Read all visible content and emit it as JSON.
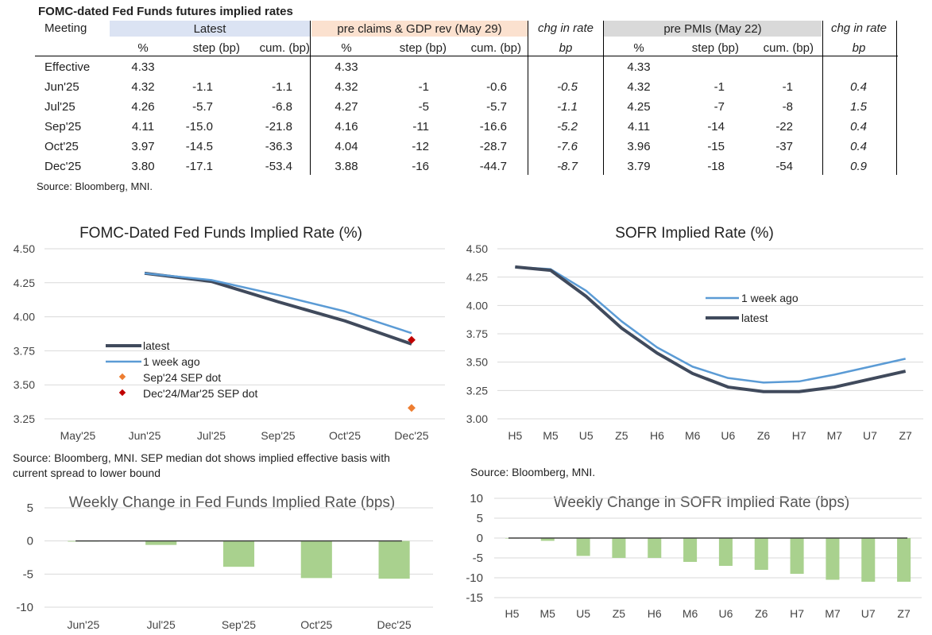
{
  "table": {
    "title": "FOMC-dated Fed Funds futures implied rates",
    "meeting_label": "Meeting",
    "groups": {
      "latest": "Latest",
      "pre_claims": "pre claims & GDP rev (May 29)",
      "chg1": "chg in rate",
      "pre_pmis": "pre PMIs (May 22)",
      "chg2": "chg in rate"
    },
    "subheaders": {
      "pct1": "%",
      "step1": "step (bp)",
      "cum1": "cum. (bp)",
      "pct2": "%",
      "step2": "step (bp)",
      "cum2": "cum. (bp)",
      "bp1": "bp",
      "pct3": "%",
      "step3": "step (bp)",
      "cum3": "cum. (bp)",
      "bp2": "bp"
    },
    "rows": [
      {
        "meeting": "Effective",
        "l_pct": "4.33",
        "l_step": "",
        "l_cum": "",
        "c_pct": "4.33",
        "c_step": "",
        "c_cum": "",
        "chg1": "",
        "p_pct": "4.33",
        "p_step": "",
        "p_cum": "",
        "chg2": ""
      },
      {
        "meeting": "Jun'25",
        "l_pct": "4.32",
        "l_step": "-1.1",
        "l_cum": "-1.1",
        "c_pct": "4.32",
        "c_step": "-1",
        "c_cum": "-0.6",
        "chg1": "-0.5",
        "p_pct": "4.32",
        "p_step": "-1",
        "p_cum": "-1",
        "chg2": "0.4"
      },
      {
        "meeting": "Jul'25",
        "l_pct": "4.26",
        "l_step": "-5.7",
        "l_cum": "-6.8",
        "c_pct": "4.27",
        "c_step": "-5",
        "c_cum": "-5.7",
        "chg1": "-1.1",
        "p_pct": "4.25",
        "p_step": "-7",
        "p_cum": "-8",
        "chg2": "1.5"
      },
      {
        "meeting": "Sep'25",
        "l_pct": "4.11",
        "l_step": "-15.0",
        "l_cum": "-21.8",
        "c_pct": "4.16",
        "c_step": "-11",
        "c_cum": "-16.6",
        "chg1": "-5.2",
        "p_pct": "4.11",
        "p_step": "-14",
        "p_cum": "-22",
        "chg2": "0.4"
      },
      {
        "meeting": "Oct'25",
        "l_pct": "3.97",
        "l_step": "-14.5",
        "l_cum": "-36.3",
        "c_pct": "4.04",
        "c_step": "-12",
        "c_cum": "-28.7",
        "chg1": "-7.6",
        "p_pct": "3.96",
        "p_step": "-15",
        "p_cum": "-37",
        "chg2": "0.4"
      },
      {
        "meeting": "Dec'25",
        "l_pct": "3.80",
        "l_step": "-17.1",
        "l_cum": "-53.4",
        "c_pct": "3.88",
        "c_step": "-16",
        "c_cum": "-44.7",
        "chg1": "-8.7",
        "p_pct": "3.79",
        "p_step": "-18",
        "p_cum": "-54",
        "chg2": "0.9"
      }
    ],
    "source": "Source: Bloomberg, MNI."
  },
  "colors": {
    "latest_band": "#dbe3f3",
    "pre_claims_band": "#fbe1cf",
    "pre_pmis_band": "#d9d9d9",
    "latest_line": "#404a5c",
    "week_ago_line": "#5b9bd5",
    "sep24_dot": "#ed7d31",
    "dec24_dot": "#c00000",
    "bars": "#a9d18e"
  },
  "chart_data": [
    {
      "type": "line",
      "title": "FOMC-Dated Fed Funds Implied Rate (%)",
      "categories": [
        "May'25",
        "Jun'25",
        "Jul'25",
        "Sep'25",
        "Oct'25",
        "Dec'25"
      ],
      "ylim": [
        3.25,
        4.5
      ],
      "yticks": [
        "4.50",
        "4.25",
        "4.00",
        "3.75",
        "3.50",
        "3.25"
      ],
      "series": [
        {
          "name": "latest",
          "values": [
            null,
            4.32,
            4.26,
            4.11,
            3.97,
            3.8
          ]
        },
        {
          "name": "1 week ago",
          "values": [
            null,
            4.32,
            4.27,
            4.16,
            4.04,
            3.88
          ]
        },
        {
          "name": "Sep'24 SEP dot",
          "values": [
            null,
            null,
            null,
            null,
            null,
            3.33
          ]
        },
        {
          "name": "Dec'24/Mar'25 SEP dot",
          "values": [
            null,
            null,
            null,
            null,
            null,
            3.83
          ]
        }
      ],
      "source": "Source: Bloomberg, MNI. SEP median dot shows implied effective basis with current spread to lower bound",
      "source_line1": "Source: Bloomberg, MNI. SEP median dot shows implied effective basis with",
      "source_line2": "current spread to lower bound"
    },
    {
      "type": "line",
      "title": "SOFR Implied Rate (%)",
      "categories": [
        "H5",
        "M5",
        "U5",
        "Z5",
        "H6",
        "M6",
        "U6",
        "Z6",
        "H7",
        "M7",
        "U7",
        "Z7"
      ],
      "ylim": [
        3.0,
        4.5
      ],
      "yticks": [
        "4.50",
        "4.25",
        "4.00",
        "3.75",
        "3.50",
        "3.25",
        "3.00"
      ],
      "series": [
        {
          "name": "1 week ago",
          "values": [
            4.34,
            4.32,
            4.13,
            3.86,
            3.63,
            3.46,
            3.36,
            3.32,
            3.33,
            3.39,
            3.46,
            3.53
          ]
        },
        {
          "name": "latest",
          "values": [
            4.34,
            4.31,
            4.08,
            3.8,
            3.58,
            3.4,
            3.28,
            3.24,
            3.24,
            3.28,
            3.35,
            3.42
          ]
        }
      ],
      "source": "Source: Bloomberg, MNI."
    },
    {
      "type": "bar",
      "title": "Weekly Change in Fed Funds Implied Rate (bps)",
      "categories": [
        "Jun'25",
        "Jul'25",
        "Sep'25",
        "Oct'25",
        "Dec'25"
      ],
      "values": [
        -0.1,
        -0.6,
        -3.9,
        -5.6,
        -5.7
      ],
      "ylim": [
        -10,
        5
      ],
      "yticks": [
        "5",
        "0",
        "-5",
        "-10"
      ]
    },
    {
      "type": "bar",
      "title": "Weekly Change in SOFR Implied Rate (bps)",
      "categories": [
        "H5",
        "M5",
        "U5",
        "Z5",
        "H6",
        "M6",
        "U6",
        "Z6",
        "H7",
        "M7",
        "U7",
        "Z7"
      ],
      "values": [
        0,
        -0.7,
        -4.5,
        -5,
        -5,
        -6,
        -7,
        -8,
        -9,
        -10.5,
        -11,
        -11
      ],
      "ylim": [
        -15,
        10
      ],
      "yticks": [
        "10",
        "5",
        "0",
        "-5",
        "-10",
        "-15"
      ]
    }
  ]
}
